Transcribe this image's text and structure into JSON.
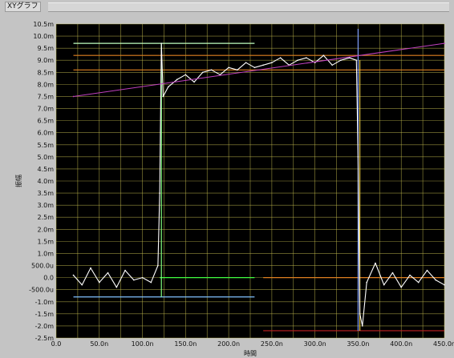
{
  "window": {
    "title": "XYグラフ"
  },
  "colors": {
    "plot_bg": "#000000",
    "grid": "#c8c050",
    "signal": "#ffffff",
    "diagonal": "#c040c0",
    "edge_rise": "#80ff80",
    "edge_fall": "#80a0ff",
    "cursor_top": "#c0ffc0",
    "cursor_mid": "#40ff40",
    "cursor_bottom": "#80c0ff",
    "line_orange": "#e08020",
    "line_red": "#c02020",
    "line_yellow": "#e0c040"
  },
  "chart_data": {
    "type": "line",
    "xlabel": "時間",
    "ylabel": "振幅",
    "xlim": [
      0,
      450
    ],
    "ylim": [
      -2.5,
      10.5
    ],
    "x_ticks": [
      0,
      50,
      100,
      150,
      200,
      250,
      300,
      350,
      400,
      450
    ],
    "x_tick_labels": [
      "0.0",
      "50.0n",
      "100.0n",
      "150.0n",
      "200.0n",
      "250.0n",
      "300.0n",
      "350.0n",
      "400.0n",
      "450.0n"
    ],
    "y_ticks": [
      -2.5,
      -2,
      -1.5,
      -1,
      -0.5,
      0,
      0.5,
      1,
      1.5,
      2,
      2.5,
      3,
      3.5,
      4,
      4.5,
      5,
      5.5,
      6,
      6.5,
      7,
      7.5,
      8,
      8.5,
      9,
      9.5,
      10,
      10.5
    ],
    "y_tick_labels": [
      "-2.5m",
      "-2.0m",
      "-1.5m",
      "-1.0m",
      "-500.0u",
      "0.0",
      "500.0u",
      "1.0m",
      "1.5m",
      "2.0m",
      "2.5m",
      "3.0m",
      "3.5m",
      "4.0m",
      "4.5m",
      "5.0m",
      "5.5m",
      "6.0m",
      "6.5m",
      "7.0m",
      "7.5m",
      "8.0m",
      "8.5m",
      "9.0m",
      "9.5m",
      "10.0m",
      "10.5m"
    ],
    "grid": true,
    "series": [
      {
        "color": "#ffffff",
        "x": [
          20,
          30,
          40,
          50,
          60,
          70,
          80,
          90,
          100,
          110,
          118,
          120,
          122,
          124,
          130,
          140,
          150,
          160,
          170,
          180,
          190,
          200,
          210,
          220,
          230,
          240,
          250,
          260,
          270,
          280,
          290,
          300,
          310,
          320,
          330,
          340,
          348,
          350,
          352,
          355,
          360,
          370,
          380,
          390,
          400,
          410,
          420,
          430,
          440,
          450
        ],
        "y": [
          0.1,
          -0.3,
          0.4,
          -0.2,
          0.2,
          -0.4,
          0.3,
          -0.1,
          0.0,
          -0.2,
          0.5,
          3.5,
          9.7,
          7.5,
          7.9,
          8.2,
          8.4,
          8.1,
          8.5,
          8.6,
          8.4,
          8.7,
          8.6,
          8.9,
          8.7,
          8.8,
          8.9,
          9.1,
          8.8,
          9.0,
          9.1,
          8.9,
          9.2,
          8.8,
          9.0,
          9.1,
          9.0,
          5.0,
          -1.5,
          -2.0,
          -0.2,
          0.6,
          -0.3,
          0.2,
          -0.4,
          0.1,
          -0.2,
          0.3,
          -0.1,
          -0.3
        ]
      },
      {
        "color": "#c040c0",
        "x": [
          20,
          450
        ],
        "y": [
          7.5,
          9.7
        ]
      }
    ],
    "reference_lines": {
      "horizontal": [
        {
          "y": 9.7,
          "x": [
            20,
            230
          ],
          "color": "#c0ffc0"
        },
        {
          "y": 9.2,
          "x": [
            20,
            450
          ],
          "color": "#e08020"
        },
        {
          "y": 8.6,
          "x": [
            20,
            450
          ],
          "color": "#e08020"
        },
        {
          "y": 0.0,
          "x": [
            120,
            230
          ],
          "color": "#40ff40"
        },
        {
          "y": 0.0,
          "x": [
            240,
            450
          ],
          "color": "#e08020"
        },
        {
          "y": -0.8,
          "x": [
            20,
            230
          ],
          "color": "#80c0ff"
        },
        {
          "y": -2.2,
          "x": [
            240,
            450
          ],
          "color": "#c02020"
        }
      ],
      "vertical": [
        {
          "x": 122,
          "y": [
            -0.8,
            9.7
          ],
          "color": "#80ff80"
        },
        {
          "x": 350,
          "y": [
            -2.2,
            10.3
          ],
          "color": "#80a0ff"
        },
        {
          "x": 352,
          "y": [
            -2.2,
            9.0
          ],
          "color": "#e0c040"
        }
      ]
    }
  }
}
